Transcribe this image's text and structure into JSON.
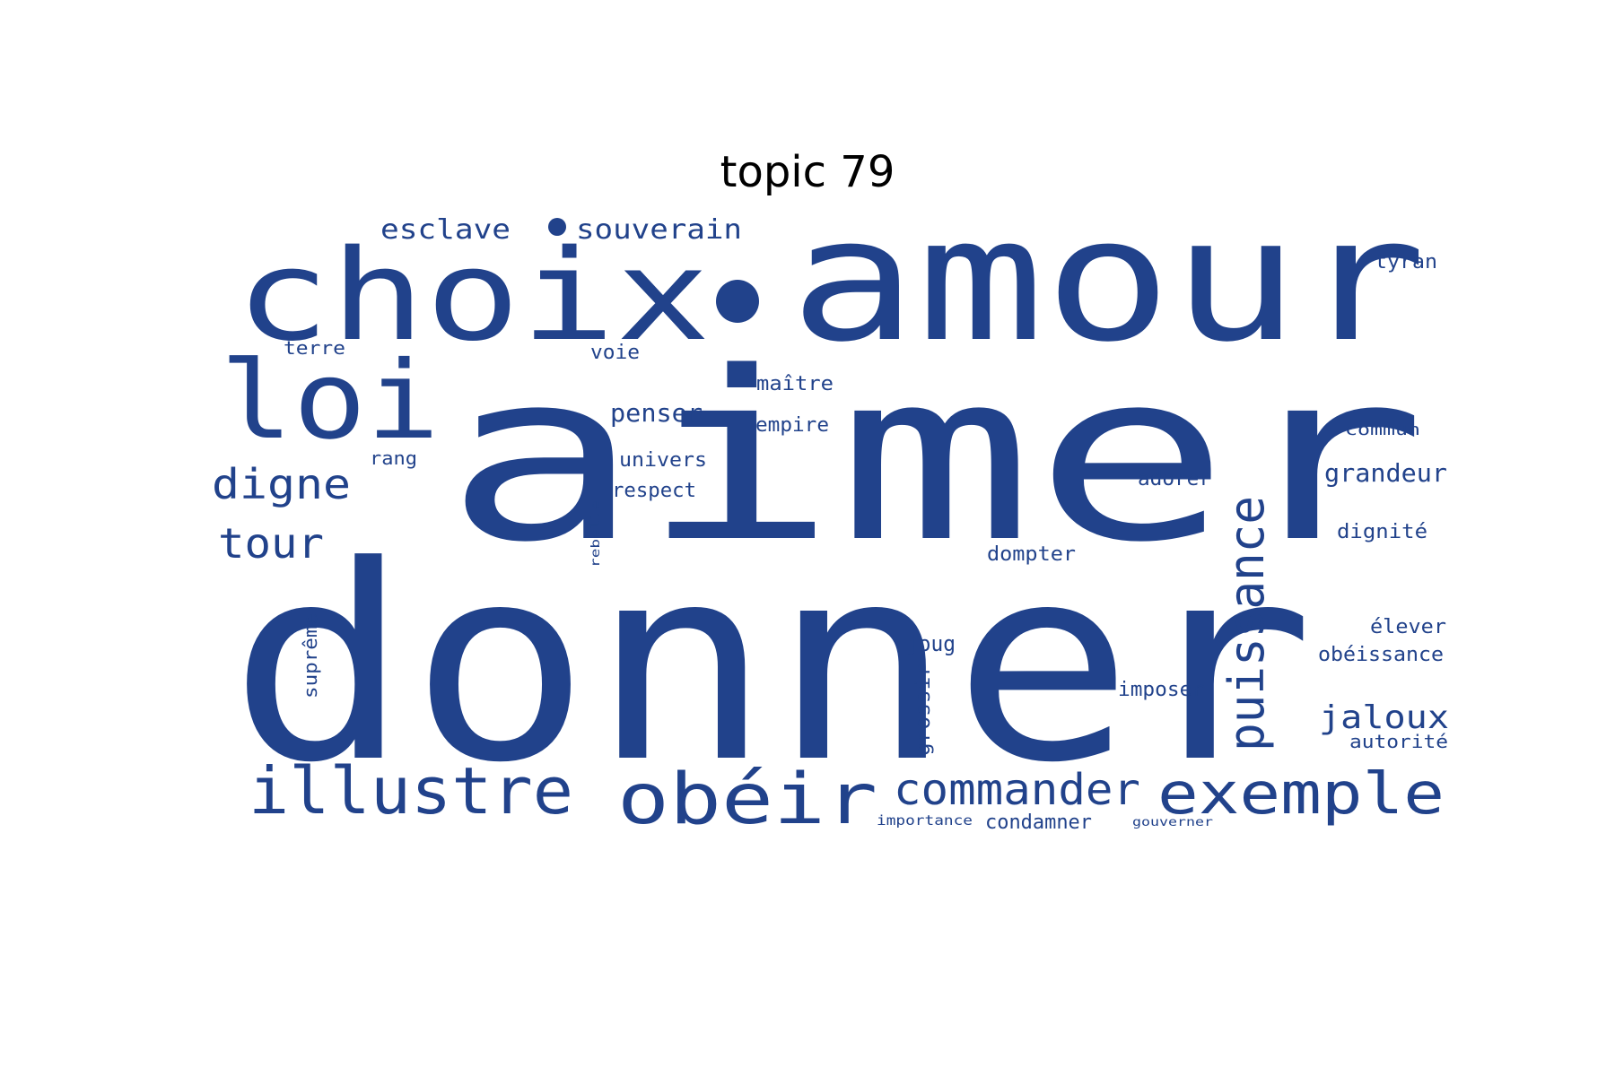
{
  "title": "topic 79",
  "colors": {
    "word": "#21428b",
    "background": "#ffffff",
    "title": "#000000"
  },
  "words": [
    {
      "text": "donner"
    },
    {
      "text": "aimer"
    },
    {
      "text": "amour"
    },
    {
      "text": "choix"
    },
    {
      "text": "loi"
    },
    {
      "text": "illustre"
    },
    {
      "text": "obéir"
    },
    {
      "text": "exemple"
    },
    {
      "text": "puissance"
    },
    {
      "text": "commander"
    },
    {
      "text": "digne"
    },
    {
      "text": "tour"
    },
    {
      "text": "souverain"
    },
    {
      "text": "esclave"
    },
    {
      "text": "jaloux"
    },
    {
      "text": "grandeur"
    },
    {
      "text": "penser"
    },
    {
      "text": "tyran"
    },
    {
      "text": "univers"
    },
    {
      "text": "respect"
    },
    {
      "text": "maître"
    },
    {
      "text": "empire"
    },
    {
      "text": "voie"
    },
    {
      "text": "terre"
    },
    {
      "text": "rang"
    },
    {
      "text": "adorer"
    },
    {
      "text": "commun"
    },
    {
      "text": "dignité"
    },
    {
      "text": "dompter"
    },
    {
      "text": "joug"
    },
    {
      "text": "imposer"
    },
    {
      "text": "élever"
    },
    {
      "text": "obéissance"
    },
    {
      "text": "autorité"
    },
    {
      "text": "suprême"
    },
    {
      "text": "grossir"
    },
    {
      "text": "condamner"
    },
    {
      "text": "importance"
    },
    {
      "text": "gouverner"
    },
    {
      "text": "rebelle"
    }
  ]
}
